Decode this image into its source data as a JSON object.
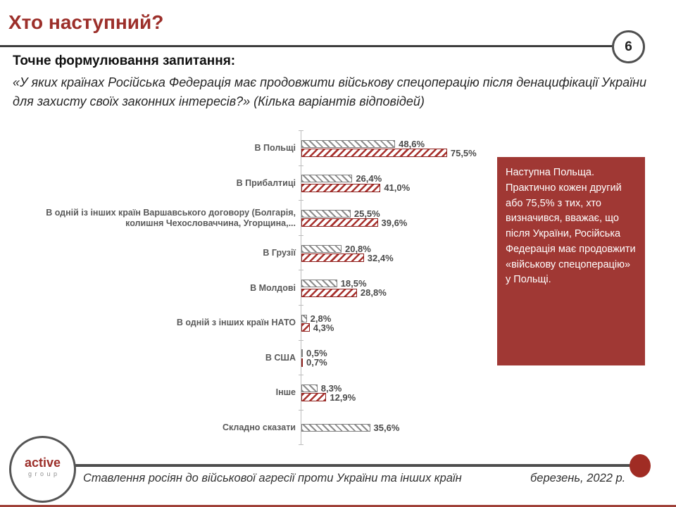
{
  "header": {
    "title": "Хто наступний?",
    "page_number": "6",
    "question_label": "Точне формулювання запитання:",
    "question_text": "«У яких країнах Російська Федерація має продовжити військову спецоперацію після денацифікації України для захисту своїх законних інтересів?» (Кілька варіантів відповідей)"
  },
  "chart_data": {
    "type": "bar",
    "orientation": "horizontal",
    "title": "",
    "xlabel": "",
    "ylabel": "",
    "xlim": [
      0,
      80
    ],
    "grid": false,
    "legend": false,
    "value_suffix": "%",
    "decimal_separator": ",",
    "categories": [
      "В Польщі",
      "В Прибалтиці",
      "В одній із інших країн Варшавського договору (Болгарія, колишня Чехословаччина, Угорщина,...",
      "В Грузії",
      "В Молдові",
      "В одній з інших країн НАТО",
      "В США",
      "Інше",
      "Складно сказати"
    ],
    "series": [
      {
        "name": "gray-hatched-series",
        "hatch": "backslash",
        "color": "#8c8c8c",
        "values": [
          48.6,
          26.4,
          25.5,
          20.8,
          18.5,
          2.8,
          0.5,
          8.3,
          35.6
        ]
      },
      {
        "name": "red-hatched-series",
        "hatch": "slash",
        "color": "#a8322e",
        "values": [
          75.5,
          41.0,
          39.6,
          32.4,
          28.8,
          4.3,
          0.7,
          12.9,
          null
        ]
      }
    ]
  },
  "callout": {
    "text": "Наступна Польща. Практично кожен другий або 75,5% з тих, хто визначився, вважає, що після України, Російська Федерація має продовжити «військову спецоперацію» у Польщі.",
    "bg_color": "#a03834",
    "text_color": "#ffffff"
  },
  "footer": {
    "logo_line1": "active",
    "logo_line2": "group",
    "caption": "Ставлення росіян до військової агресії проти України та інших країн",
    "date": "березень, 2022 р."
  },
  "colors": {
    "accent_red": "#9c2f2a",
    "title_rule": "#3d3d3d",
    "category_label": "#595959",
    "value_label": "#4a4a4a",
    "axis": "#bdbdbd"
  }
}
